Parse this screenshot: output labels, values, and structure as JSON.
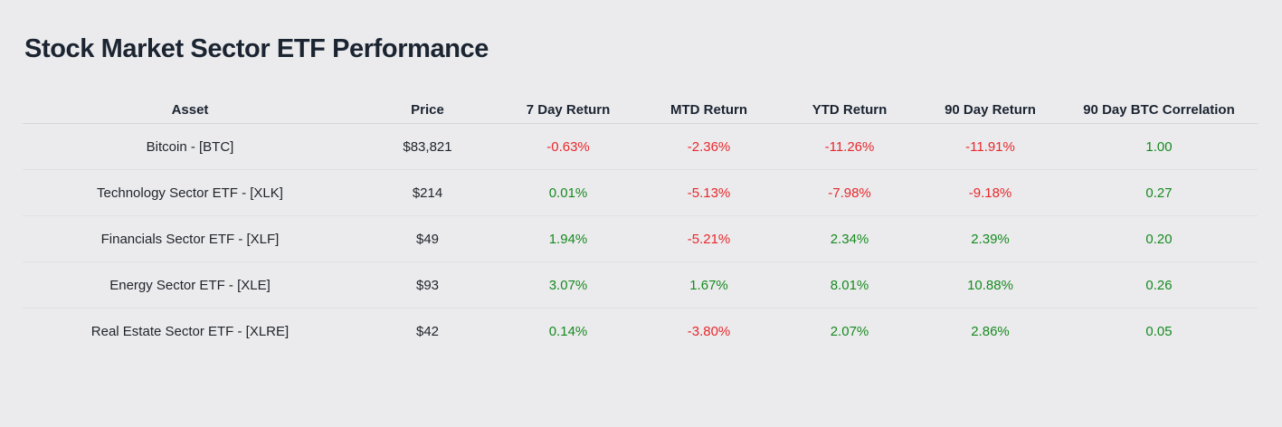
{
  "title": "Stock Market Sector ETF Performance",
  "chart_data": {
    "type": "table",
    "title": "Stock Market Sector ETF Performance",
    "columns": [
      "Asset",
      "Price",
      "7 Day Return",
      "MTD Return",
      "YTD Return",
      "90 Day Return",
      "90 Day BTC Correlation"
    ],
    "rows": [
      [
        "Bitcoin - [BTC]",
        "$83,821",
        "-0.63%",
        "-2.36%",
        "-11.26%",
        "-11.91%",
        "1.00"
      ],
      [
        "Technology Sector ETF - [XLK]",
        "$214",
        "0.01%",
        "-5.13%",
        "-7.98%",
        "-9.18%",
        "0.27"
      ],
      [
        "Financials Sector ETF - [XLF]",
        "$49",
        "1.94%",
        "-5.21%",
        "2.34%",
        "2.39%",
        "0.20"
      ],
      [
        "Energy Sector ETF - [XLE]",
        "$93",
        "3.07%",
        "1.67%",
        "8.01%",
        "10.88%",
        "0.26"
      ],
      [
        "Real Estate Sector ETF - [XLRE]",
        "$42",
        "0.14%",
        "-3.80%",
        "2.07%",
        "2.86%",
        "0.05"
      ]
    ],
    "notes": {
      "colored_columns_start_index": 2,
      "color_rule": "negative values red, non-negative values green"
    }
  },
  "colors": {
    "positive": "#178a20",
    "negative": "#e8282c",
    "heading_text": "#1b2431",
    "body_text": "#20242b",
    "page_background": "#ebebed",
    "header_divider": "#d6d6d9",
    "row_divider": "#e1e1e4"
  }
}
